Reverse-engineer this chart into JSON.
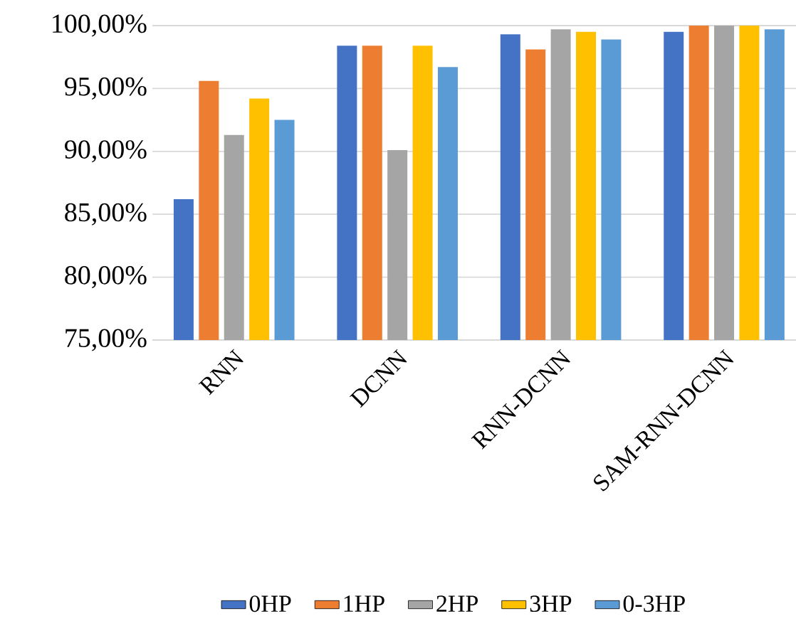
{
  "chart_data": {
    "type": "bar",
    "categories": [
      "RNN",
      "DCNN",
      "RNN-DCNN",
      "SAM-RNN-DCNN"
    ],
    "series": [
      {
        "name": "0HP",
        "color": "#4472c4",
        "values": [
          86.2,
          98.4,
          99.3,
          99.5
        ]
      },
      {
        "name": "1HP",
        "color": "#ed7d31",
        "values": [
          95.6,
          98.4,
          98.1,
          100
        ]
      },
      {
        "name": "2HP",
        "color": "#a5a5a5",
        "values": [
          91.3,
          90.1,
          99.7,
          100
        ]
      },
      {
        "name": "3HP",
        "color": "#ffc000",
        "values": [
          94.2,
          98.4,
          99.5,
          100
        ]
      },
      {
        "name": "0-3HP",
        "color": "#5b9bd5",
        "values": [
          92.5,
          96.7,
          98.9,
          99.7
        ]
      }
    ],
    "ylim": [
      75,
      100
    ],
    "yticks": [
      {
        "value": 75,
        "label": "75,00%"
      },
      {
        "value": 80,
        "label": "80,00%"
      },
      {
        "value": 85,
        "label": "85,00%"
      },
      {
        "value": 90,
        "label": "90,00%"
      },
      {
        "value": 95,
        "label": "95,00%"
      },
      {
        "value": 100,
        "label": "100,00%"
      }
    ],
    "grid": "y",
    "legend": "bottom"
  }
}
